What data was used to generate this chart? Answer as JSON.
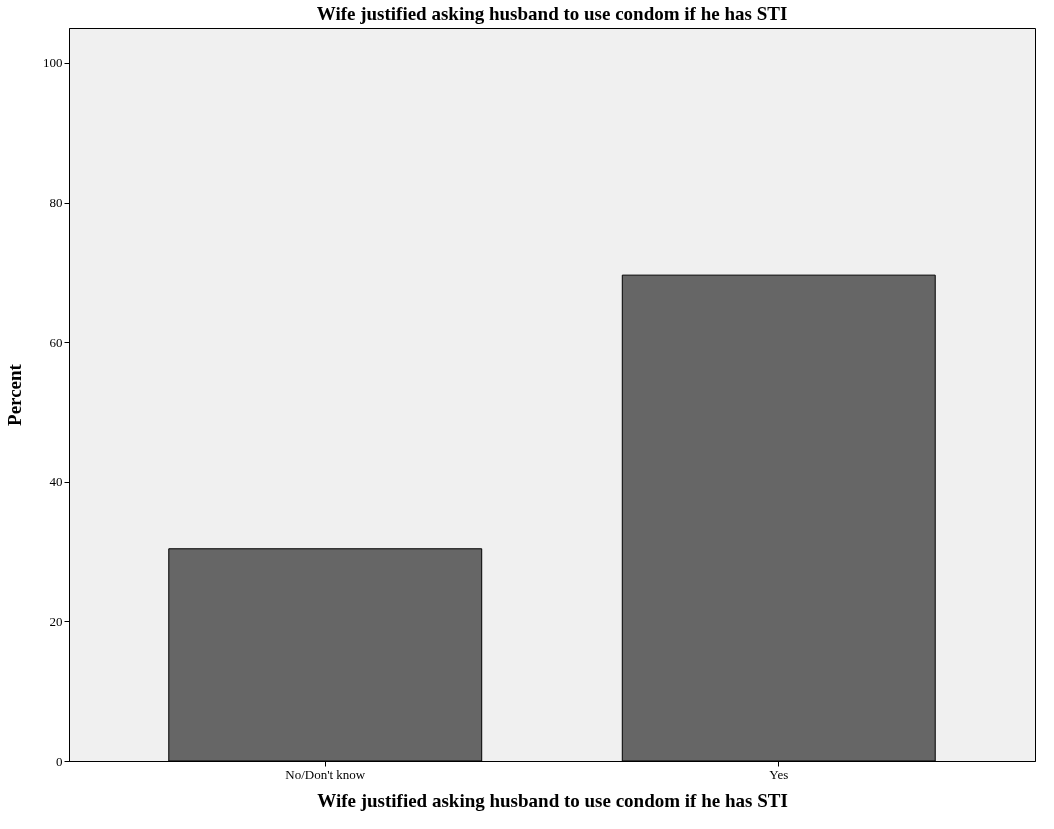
{
  "chart_data": {
    "type": "bar",
    "title": "Wife justified asking husband to use condom if he has STI",
    "xlabel": "Wife justified asking husband to use condom if he has STI",
    "ylabel": "Percent",
    "categories": [
      "No/Don't know",
      "Yes"
    ],
    "values": [
      30.4,
      69.6
    ],
    "color": "#666666",
    "ylim": [
      0,
      105
    ],
    "yticks": [
      0,
      20,
      40,
      60,
      80,
      100
    ],
    "grid": false
  }
}
